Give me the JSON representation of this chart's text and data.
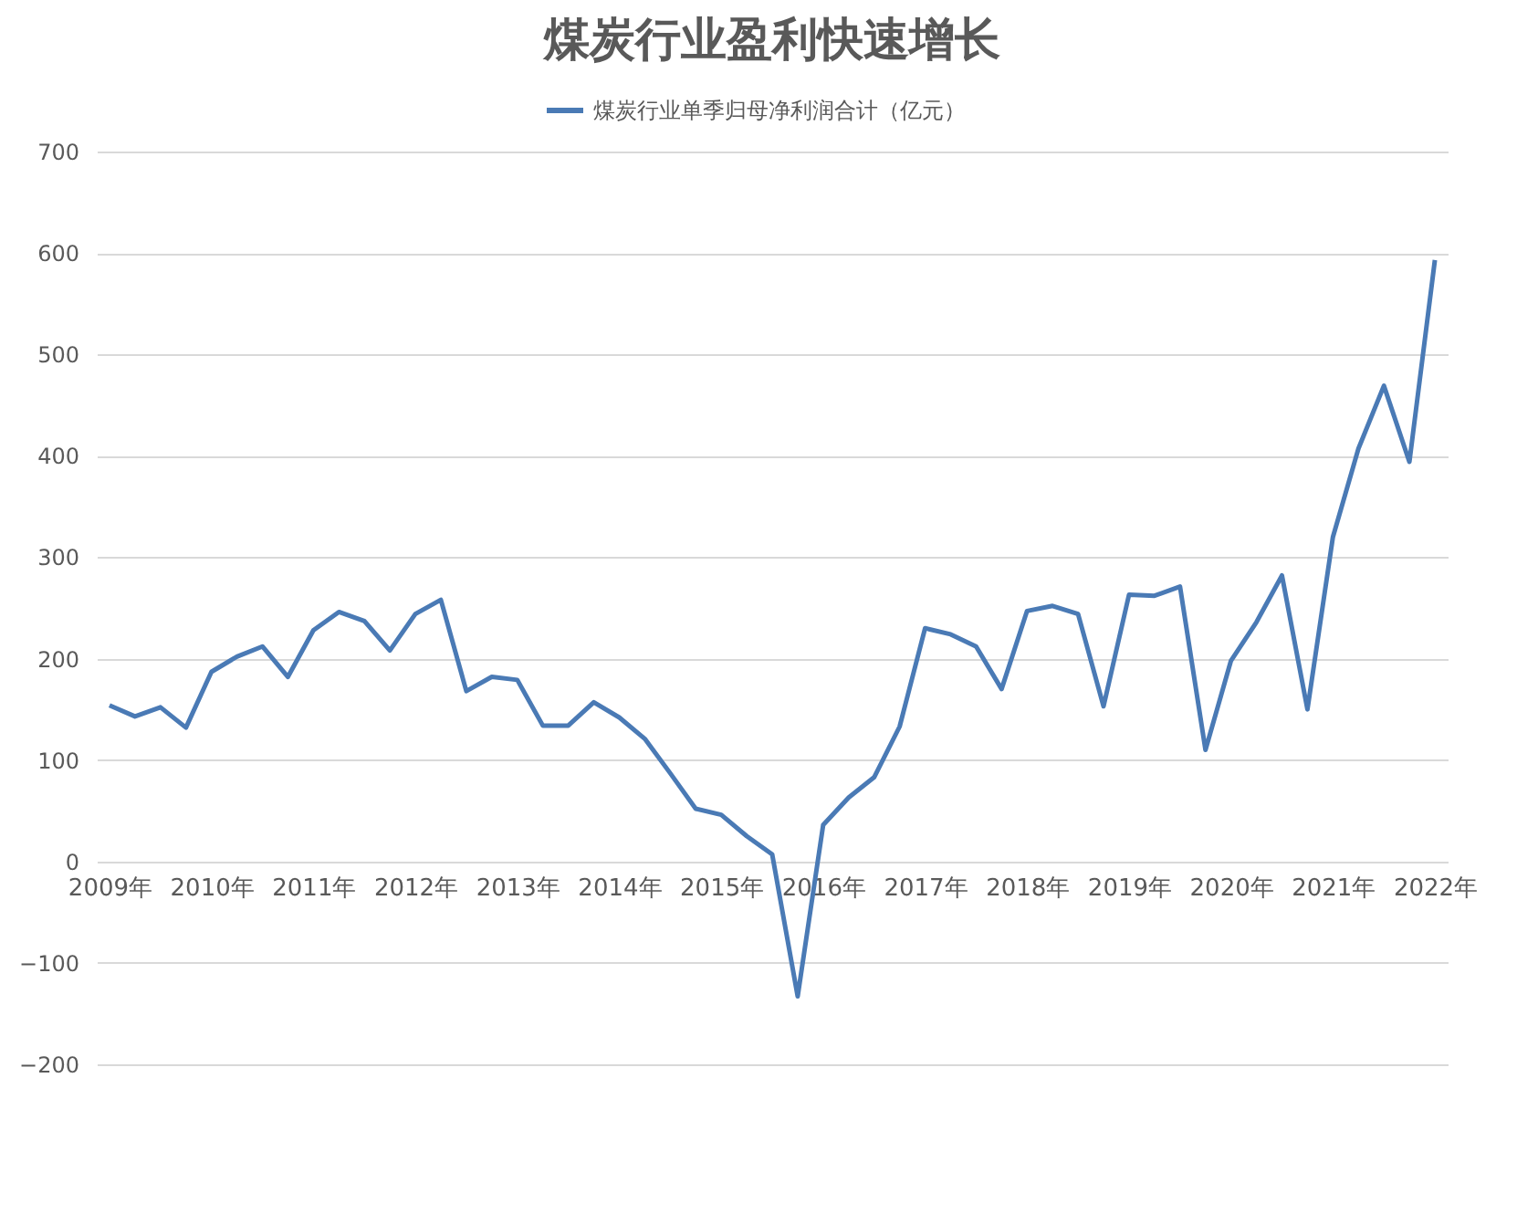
{
  "chart_data": {
    "type": "line",
    "title": "煤炭行业盈利快速增长",
    "categories": [
      "2009年",
      null,
      null,
      null,
      "2010年",
      null,
      null,
      null,
      "2011年",
      null,
      null,
      null,
      "2012年",
      null,
      null,
      null,
      "2013年",
      null,
      null,
      null,
      "2014年",
      null,
      null,
      null,
      "2015年",
      null,
      null,
      null,
      "2016年",
      null,
      null,
      null,
      "2017年",
      null,
      null,
      null,
      "2018年",
      null,
      null,
      null,
      "2019年",
      null,
      null,
      null,
      "2020年",
      null,
      null,
      null,
      "2021年",
      null,
      null,
      null,
      "2022年"
    ],
    "series": [
      {
        "name": "煤炭行业单季归母净利润合计（亿元）",
        "color": "#4a7ab5",
        "values": [
          154,
          143,
          152,
          132,
          187,
          202,
          212,
          182,
          228,
          246,
          237,
          208,
          244,
          258,
          168,
          182,
          179,
          134,
          134,
          157,
          142,
          121,
          87,
          52,
          46,
          25,
          7,
          -133,
          36,
          63,
          83,
          133,
          230,
          224,
          212,
          170,
          247,
          252,
          244,
          153,
          263,
          262,
          271,
          110,
          198,
          236,
          282,
          150,
          320,
          407,
          469,
          394,
          593
        ]
      }
    ],
    "ylim": [
      -200,
      700
    ],
    "yticks": [
      -200,
      -100,
      0,
      100,
      200,
      300,
      400,
      500,
      600,
      700
    ],
    "grid": "y",
    "legend": "top",
    "marker": "none",
    "line_style": "solid"
  }
}
